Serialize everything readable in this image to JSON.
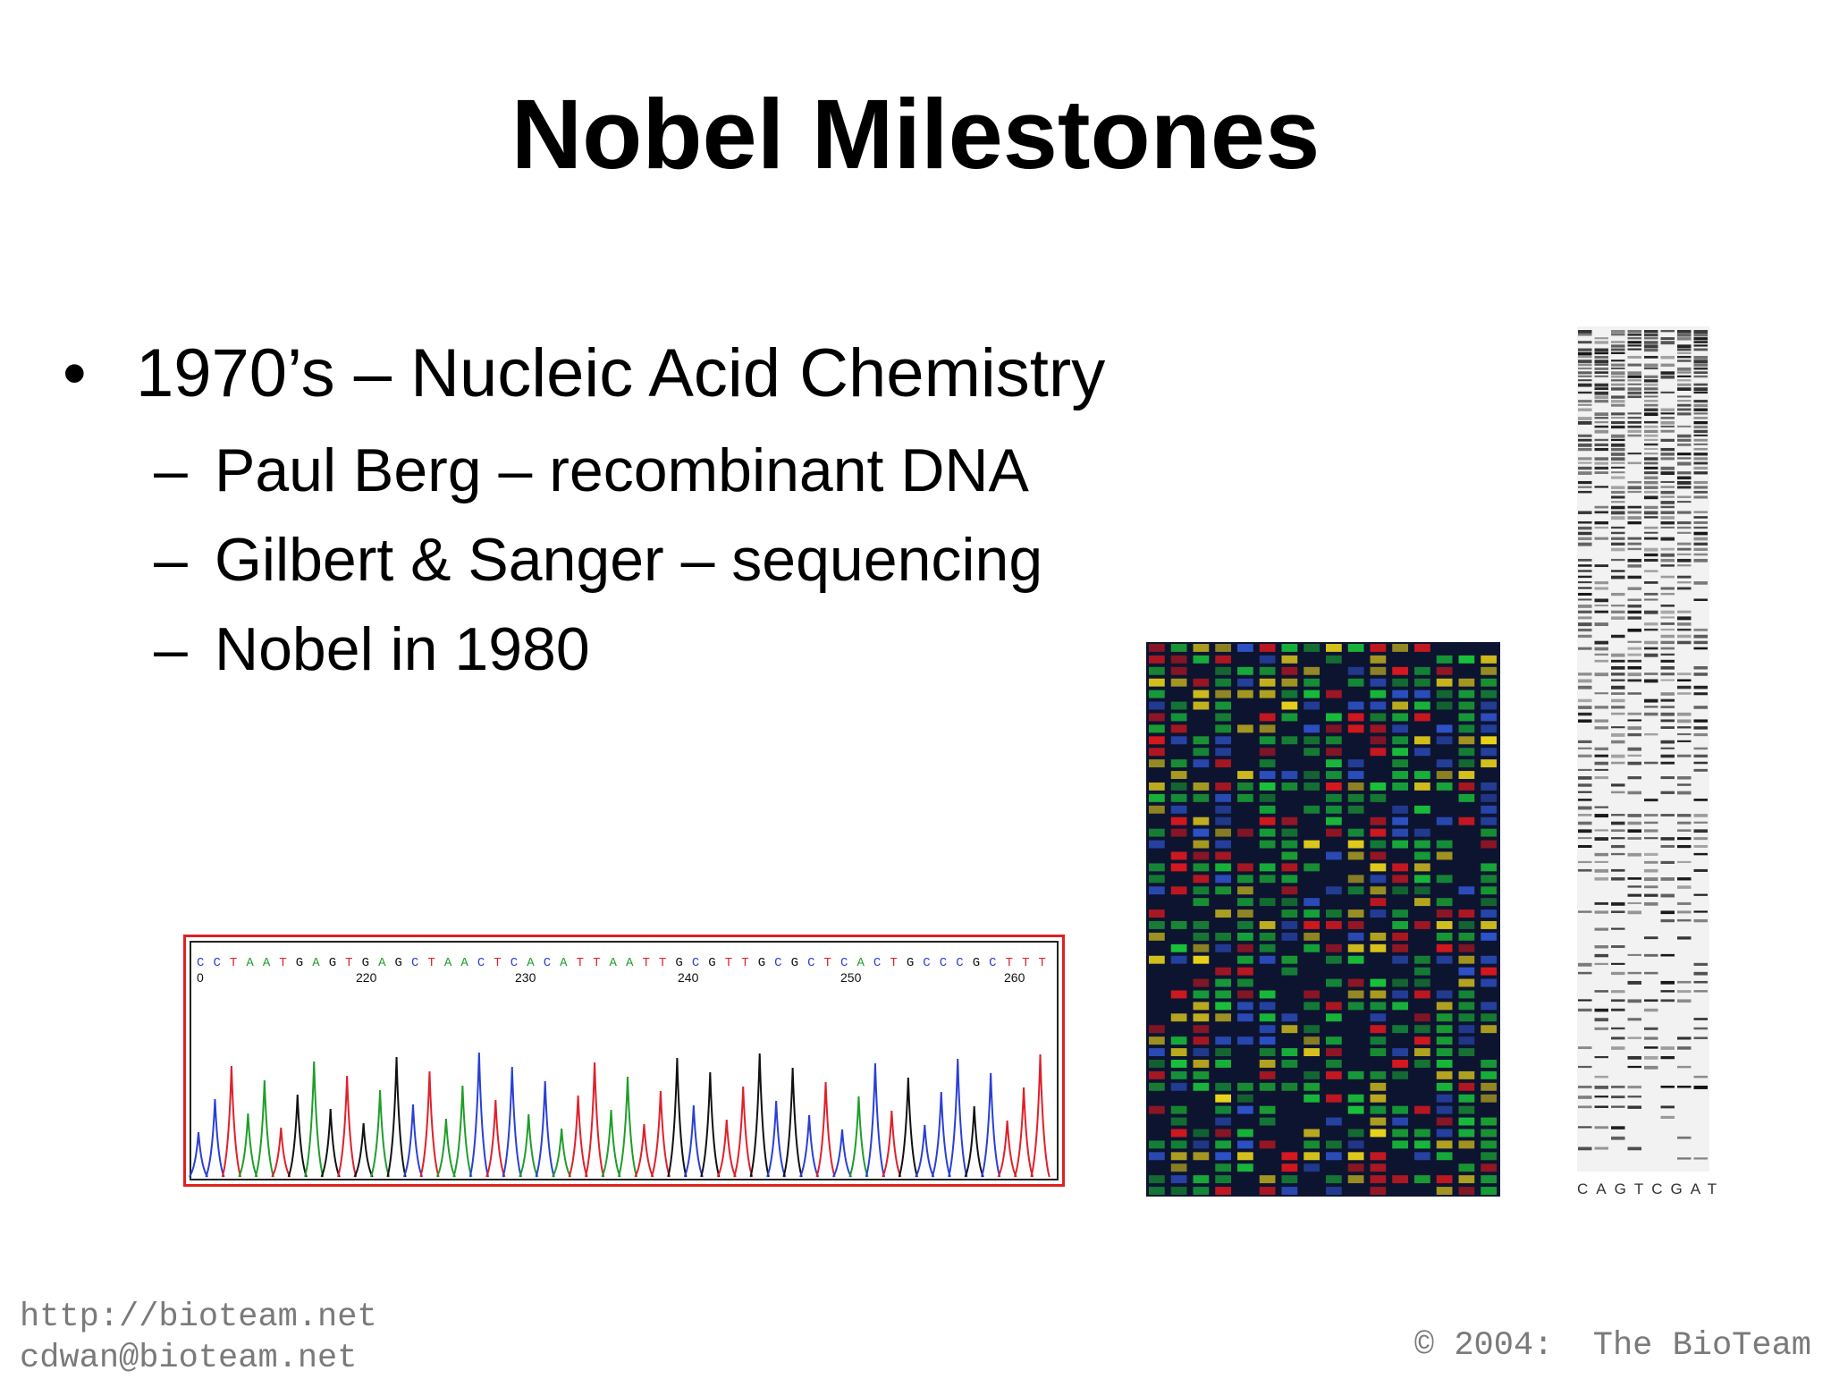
{
  "slide": {
    "title": "Nobel Milestones",
    "bullet": {
      "marker": "•",
      "text": "1970’s – Nucleic Acid Chemistry"
    },
    "subbullets": [
      {
        "marker": "–",
        "text": "Paul Berg – recombinant DNA"
      },
      {
        "marker": "–",
        "text": "Gilbert & Sanger – sequencing"
      },
      {
        "marker": "–",
        "text": "Nobel in 1980"
      }
    ]
  },
  "chromatogram": {
    "sequence": "CCTAATGAGTGAGCTAACTCACATTAATTGCGTTGCGCTCACTGCCCGCTTT",
    "positions": [
      "0",
      "220",
      "230",
      "240",
      "250",
      "260"
    ],
    "base_colors": {
      "A": "#1e9e2a",
      "C": "#2a3fd6",
      "G": "#111111",
      "T": "#e0202a"
    }
  },
  "bw_gel": {
    "lane_labels": "CAGTCGAT"
  },
  "footer": {
    "url": "http://bioteam.net",
    "email": "cdwan@bioteam.net",
    "copyright": "© 2004:  The BioTeam"
  },
  "colors": {
    "chromatogram_border": "#e02020",
    "footer_text": "#7a7a7a"
  }
}
